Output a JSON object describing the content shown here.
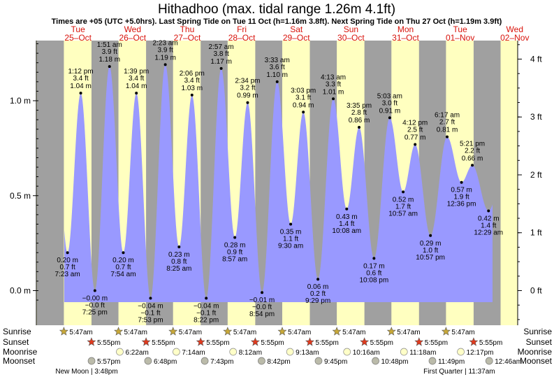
{
  "title": "Hithadhoo (max. tidal range 1.26m 4.1ft)",
  "subtitle": "Times are +05 (UTC +5.0hrs). Last Spring Tide on Tue 11 Oct (h=1.16m 3.8ft). Next Spring Tide on Thu 27 Oct (h=1.19m 3.9ft)",
  "colors": {
    "night": "#a0a0a0",
    "day": "#ffffc0",
    "tide": "#9999ff",
    "day_label": "#d8120a",
    "sun": "#c8a838",
    "sunset": "#e03a1e",
    "moonrise": "#ffffc8",
    "moonset": "#bbbbaa"
  },
  "days": [
    {
      "dow": "Tue",
      "date": "25–Oct"
    },
    {
      "dow": "Wed",
      "date": "26–Oct"
    },
    {
      "dow": "Thu",
      "date": "27–Oct"
    },
    {
      "dow": "Fri",
      "date": "28–Oct"
    },
    {
      "dow": "Sat",
      "date": "29–Oct"
    },
    {
      "dow": "Sun",
      "date": "30–Oct"
    },
    {
      "dow": "Mon",
      "date": "31–Oct"
    },
    {
      "dow": "Tue",
      "date": "01–Nov"
    },
    {
      "dow": "Wed",
      "date": "02–Nov"
    }
  ],
  "chart_data": {
    "type": "area",
    "title": "Hithadhoo (max. tidal range 1.26m 4.1ft)",
    "x_unit": "hours from 00:00 Tue 25 Oct (local time)",
    "ylim_m": [
      -0.2,
      1.35
    ],
    "y_ticks_m": [
      "1.0 m",
      "0.5 m",
      "0.0 m"
    ],
    "y_ticks_m_values": [
      1.0,
      0.5,
      0.0
    ],
    "y_ticks_ft": [
      "4 ft",
      "3 ft",
      "2 ft",
      "1 ft",
      "0 ft"
    ],
    "y_ticks_ft_values": [
      4,
      3,
      2,
      1,
      0
    ],
    "extremes": [
      {
        "t": "7:23 am",
        "m": "0.20 m",
        "ft": "0.7 ft",
        "day": 0,
        "h": 7.38,
        "v": 0.2,
        "type": "low"
      },
      {
        "t": "1:12 pm",
        "m": "1.04 m",
        "ft": "3.4 ft",
        "day": 0,
        "h": 13.2,
        "v": 1.04,
        "type": "high"
      },
      {
        "t": "7:25 pm",
        "m": "−0.00 m",
        "ft": "−0.0 ft",
        "day": 0,
        "h": 19.42,
        "v": 0.0,
        "type": "low"
      },
      {
        "t": "1:51 am",
        "m": "1.18 m",
        "ft": "3.9 ft",
        "day": 1,
        "h": 1.85,
        "v": 1.18,
        "type": "high"
      },
      {
        "t": "7:54 am",
        "m": "0.20 m",
        "ft": "0.7 ft",
        "day": 1,
        "h": 7.9,
        "v": 0.2,
        "type": "low"
      },
      {
        "t": "1:39 pm",
        "m": "1.04 m",
        "ft": "3.4 ft",
        "day": 1,
        "h": 13.65,
        "v": 1.04,
        "type": "high"
      },
      {
        "t": "7:53 pm",
        "m": "−0.04 m",
        "ft": "−0.1 ft",
        "day": 1,
        "h": 19.88,
        "v": -0.04,
        "type": "low"
      },
      {
        "t": "2:23 am",
        "m": "1.19 m",
        "ft": "3.9 ft",
        "day": 2,
        "h": 2.38,
        "v": 1.19,
        "type": "high"
      },
      {
        "t": "8:25 am",
        "m": "0.23 m",
        "ft": "0.8 ft",
        "day": 2,
        "h": 8.42,
        "v": 0.23,
        "type": "low"
      },
      {
        "t": "2:06 pm",
        "m": "1.03 m",
        "ft": "3.4 ft",
        "day": 2,
        "h": 14.1,
        "v": 1.03,
        "type": "high"
      },
      {
        "t": "8:22 pm",
        "m": "−0.04 m",
        "ft": "−0.1 ft",
        "day": 2,
        "h": 20.37,
        "v": -0.04,
        "type": "low"
      },
      {
        "t": "2:57 am",
        "m": "1.17 m",
        "ft": "3.8 ft",
        "day": 3,
        "h": 2.95,
        "v": 1.17,
        "type": "high"
      },
      {
        "t": "8:57 am",
        "m": "0.28 m",
        "ft": "0.9 ft",
        "day": 3,
        "h": 8.95,
        "v": 0.28,
        "type": "low"
      },
      {
        "t": "2:34 pm",
        "m": "0.99 m",
        "ft": "3.2 ft",
        "day": 3,
        "h": 14.57,
        "v": 0.99,
        "type": "high"
      },
      {
        "t": "8:54 pm",
        "m": "−0.01 m",
        "ft": "−0.0 ft",
        "day": 3,
        "h": 20.9,
        "v": -0.01,
        "type": "low"
      },
      {
        "t": "3:33 am",
        "m": "1.10 m",
        "ft": "3.6 ft",
        "day": 4,
        "h": 3.55,
        "v": 1.1,
        "type": "high"
      },
      {
        "t": "9:30 am",
        "m": "0.35 m",
        "ft": "1.1 ft",
        "day": 4,
        "h": 9.5,
        "v": 0.35,
        "type": "low"
      },
      {
        "t": "3:03 pm",
        "m": "0.94 m",
        "ft": "3.1 ft",
        "day": 4,
        "h": 15.05,
        "v": 0.94,
        "type": "high"
      },
      {
        "t": "9:29 pm",
        "m": "0.06 m",
        "ft": "0.2 ft",
        "day": 4,
        "h": 21.48,
        "v": 0.06,
        "type": "low"
      },
      {
        "t": "4:13 am",
        "m": "1.01 m",
        "ft": "3.3 ft",
        "day": 5,
        "h": 4.22,
        "v": 1.01,
        "type": "high"
      },
      {
        "t": "10:08 am",
        "m": "0.43 m",
        "ft": "1.4 ft",
        "day": 5,
        "h": 10.13,
        "v": 0.43,
        "type": "low"
      },
      {
        "t": "3:35 pm",
        "m": "0.86 m",
        "ft": "2.8 ft",
        "day": 5,
        "h": 15.58,
        "v": 0.86,
        "type": "high"
      },
      {
        "t": "10:08 pm",
        "m": "0.17 m",
        "ft": "0.6 ft",
        "day": 5,
        "h": 22.13,
        "v": 0.17,
        "type": "low"
      },
      {
        "t": "5:03 am",
        "m": "0.91 m",
        "ft": "3.0 ft",
        "day": 6,
        "h": 5.05,
        "v": 0.91,
        "type": "high"
      },
      {
        "t": "10:57 am",
        "m": "0.52 m",
        "ft": "1.7 ft",
        "day": 6,
        "h": 10.95,
        "v": 0.52,
        "type": "low"
      },
      {
        "t": "4:12 pm",
        "m": "0.77 m",
        "ft": "2.5 ft",
        "day": 6,
        "h": 16.2,
        "v": 0.77,
        "type": "high"
      },
      {
        "t": "10:57 pm",
        "m": "0.29 m",
        "ft": "1.0 ft",
        "day": 6,
        "h": 22.95,
        "v": 0.29,
        "type": "low"
      },
      {
        "t": "6:17 am",
        "m": "0.81 m",
        "ft": "2.7 ft",
        "day": 7,
        "h": 6.28,
        "v": 0.81,
        "type": "high"
      },
      {
        "t": "12:36 pm",
        "m": "0.57 m",
        "ft": "1.9 ft",
        "day": 7,
        "h": 12.6,
        "v": 0.57,
        "type": "low"
      },
      {
        "t": "5:21 pm",
        "m": "0.66 m",
        "ft": "2.2 ft",
        "day": 7,
        "h": 17.35,
        "v": 0.66,
        "type": "high"
      },
      {
        "t": "12:29 am",
        "m": "0.42 m",
        "ft": "1.4 ft",
        "day": 8,
        "h": 0.48,
        "v": 0.42,
        "type": "low"
      }
    ]
  },
  "bottom": {
    "row_labels": [
      "Sunrise",
      "Sunset",
      "Moonrise",
      "Moonset"
    ],
    "sunrise": [
      {
        "day": 0,
        "t": "5:47am",
        "h": 5.78
      },
      {
        "day": 1,
        "t": "5:47am",
        "h": 5.78
      },
      {
        "day": 2,
        "t": "5:47am",
        "h": 5.78
      },
      {
        "day": 3,
        "t": "5:47am",
        "h": 5.78
      },
      {
        "day": 4,
        "t": "5:47am",
        "h": 5.78
      },
      {
        "day": 5,
        "t": "5:47am",
        "h": 5.78
      },
      {
        "day": 6,
        "t": "5:47am",
        "h": 5.78
      },
      {
        "day": 7,
        "t": "5:47am",
        "h": 5.78
      }
    ],
    "sunset": [
      {
        "day": 0,
        "t": "5:55pm",
        "h": 17.92
      },
      {
        "day": 1,
        "t": "5:55pm",
        "h": 17.92
      },
      {
        "day": 2,
        "t": "5:55pm",
        "h": 17.92
      },
      {
        "day": 3,
        "t": "5:55pm",
        "h": 17.92
      },
      {
        "day": 4,
        "t": "5:55pm",
        "h": 17.92
      },
      {
        "day": 5,
        "t": "5:55pm",
        "h": 17.92
      },
      {
        "day": 6,
        "t": "5:55pm",
        "h": 17.92
      },
      {
        "day": 7,
        "t": "5:55pm",
        "h": 17.92
      }
    ],
    "moonrise": [
      {
        "day": 1,
        "t": "6:22am",
        "h": 6.37
      },
      {
        "day": 2,
        "t": "7:14am",
        "h": 7.23
      },
      {
        "day": 3,
        "t": "8:12am",
        "h": 8.2
      },
      {
        "day": 4,
        "t": "9:13am",
        "h": 9.22
      },
      {
        "day": 5,
        "t": "10:16am",
        "h": 10.27
      },
      {
        "day": 6,
        "t": "11:18am",
        "h": 11.3
      },
      {
        "day": 7,
        "t": "12:17pm",
        "h": 12.28
      }
    ],
    "moonset": [
      {
        "day": 0,
        "t": "5:57pm",
        "h": 17.95
      },
      {
        "day": 1,
        "t": "6:48pm",
        "h": 18.8
      },
      {
        "day": 2,
        "t": "7:43pm",
        "h": 19.72
      },
      {
        "day": 3,
        "t": "8:42pm",
        "h": 20.7
      },
      {
        "day": 4,
        "t": "9:45pm",
        "h": 21.75
      },
      {
        "day": 5,
        "t": "10:48pm",
        "h": 22.8
      },
      {
        "day": 6,
        "t": "11:49pm",
        "h": 23.82
      },
      {
        "day": 8,
        "t": "12:46am",
        "h": 0.77
      }
    ],
    "phases": [
      {
        "label": "New Moon | 3:48pm",
        "day": 0,
        "h": 15.8
      },
      {
        "label": "First Quarter | 11:37am",
        "day": 7,
        "h": 11.62
      }
    ]
  }
}
